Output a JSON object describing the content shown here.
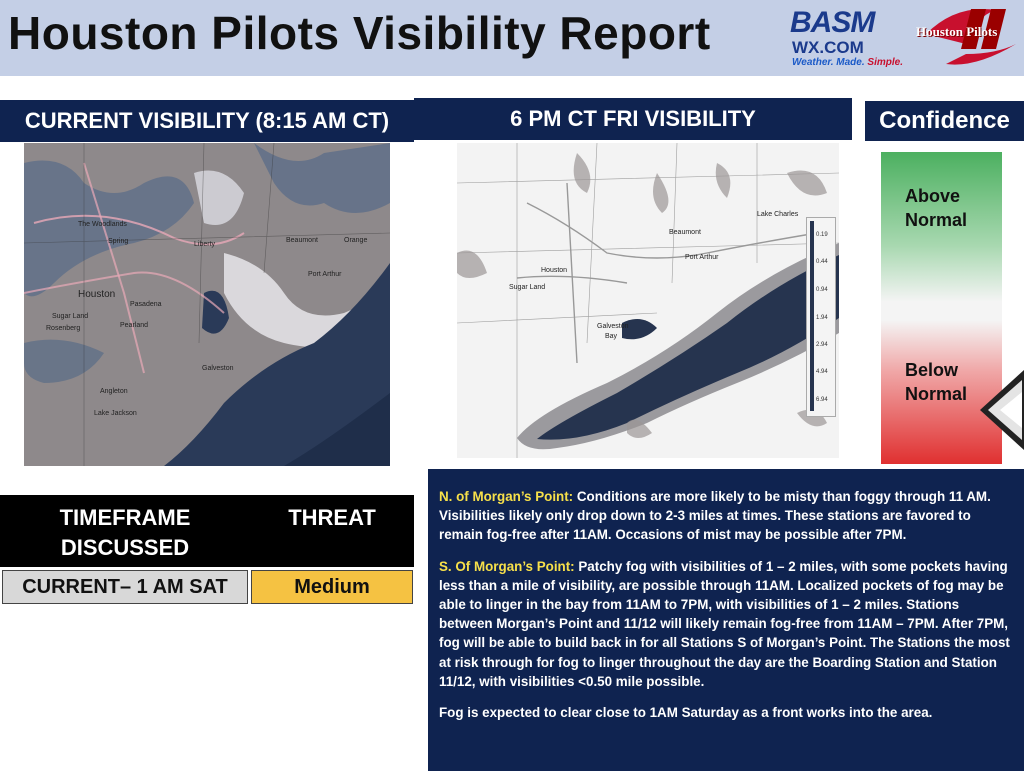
{
  "header": {
    "title": "Houston Pilots Visibility Report",
    "basm_logo": {
      "word": "BASM",
      "wx": "WX.COM",
      "tagline_a": "Weather. Made. ",
      "tagline_b": "Simple."
    },
    "pilots_logo": {
      "word": "Houston Pilots"
    }
  },
  "current_panel": {
    "title": "CURRENT VISIBILITY (8:15 AM CT)",
    "map_labels": [
      "The Woodlands",
      "Spring",
      "Liberty",
      "Beaumont",
      "Orange",
      "Port Arthur",
      "Houston",
      "Pasadena",
      "Sugar Land",
      "Pearland",
      "Rosenberg",
      "Galveston",
      "Angleton",
      "Lake Jackson"
    ]
  },
  "forecast_panel": {
    "title": "6 PM CT FRI VISIBILITY",
    "map_labels": [
      "Lake Charles",
      "Beaumont",
      "Port Arthur",
      "Houston",
      "Sugar Land",
      "Galveston",
      "Bay"
    ],
    "legend_values": [
      "0.19",
      "0.44",
      "0.94",
      "1.94",
      "2.94",
      "4.94",
      "6.94"
    ]
  },
  "confidence": {
    "title": "Confidence",
    "above_line1": "Above",
    "above_line2": "Normal",
    "below_line1": "Below",
    "below_line2": "Normal",
    "colors": {
      "top": "#4cb060",
      "middle": "#f4f4f4",
      "bottom": "#e03030"
    }
  },
  "threat_table": {
    "headers": {
      "timeframe_line1": "TIMEFRAME",
      "timeframe_line2": "DISCUSSED",
      "threat": "THREAT"
    },
    "row": {
      "timeframe": "CURRENT– 1 AM SAT",
      "threat": "Medium",
      "threat_color": "#f5c242"
    }
  },
  "discussion": {
    "north_heading": "N. of Morgan’s Point:",
    "north_text": " Conditions are more likely to be misty than foggy through 11 AM. Visibilities likely only drop down to 2-3 miles at times. These stations are favored to remain fog-free after 11AM. Occasions of mist may be possible after 7PM.",
    "south_heading": "S. Of Morgan’s Point:",
    "south_text": " Patchy fog with visibilities of 1 – 2 miles, with some pockets having less than a mile of visibility, are possible through 11AM. Localized pockets of fog may be able to linger in the bay from 11AM to 7PM, with visibilities of 1 – 2 miles. Stations between Morgan’s Point and 11/12 will likely remain fog-free from 11AM – 7PM.  After 7PM, fog will be able to build back in for all Stations S of Morgan’s Point. The Stations the most at risk through for fog to linger throughout the day are the Boarding Station and Station 11/12, with visibilities <0.50 mile possible.",
    "closing": "Fog is expected to clear close to 1AM Saturday as a front works into the area."
  }
}
